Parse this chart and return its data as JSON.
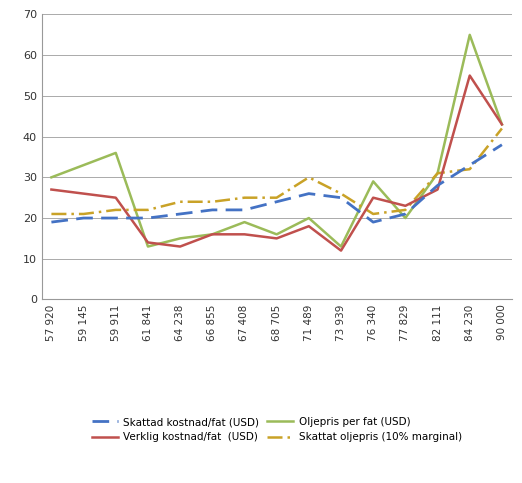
{
  "x_labels": [
    "57 920",
    "59 145",
    "59 911",
    "61 841",
    "64 238",
    "66 855",
    "67 408",
    "68 705",
    "71 489",
    "73 939",
    "76 340",
    "77 829",
    "82 111",
    "84 230",
    "90 000"
  ],
  "skattad_kostnad": [
    19,
    20,
    20,
    20,
    21,
    22,
    22,
    24,
    26,
    25,
    19,
    21,
    28,
    33,
    38
  ],
  "verklig_kostnad": [
    27,
    26,
    25,
    14,
    13,
    16,
    16,
    15,
    18,
    12,
    25,
    23,
    27,
    55,
    43
  ],
  "oljepris": [
    30,
    33,
    36,
    13,
    15,
    16,
    19,
    16,
    20,
    13,
    29,
    20,
    31,
    65,
    43
  ],
  "skattat_oljepris": [
    21,
    21,
    22,
    22,
    24,
    24,
    25,
    25,
    30,
    26,
    21,
    22,
    31,
    32,
    42
  ],
  "skattad_color": "#4472C4",
  "verklig_color": "#C0504D",
  "oljepris_color": "#9BBB59",
  "skattat_oljepris_color": "#C9A227",
  "ylim": [
    0,
    70
  ],
  "yticks": [
    0,
    10,
    20,
    30,
    40,
    50,
    60,
    70
  ],
  "legend_skattad": "Skattad kostnad/fat (USD)",
  "legend_verklig": "Verklig kostnad/fat  (USD)",
  "legend_oljepris": "Oljepris per fat (USD)",
  "legend_skattat": "Skattat oljepris (10% marginal)",
  "bg_color": "#FFFFFF",
  "grid_color": "#AAAAAA"
}
